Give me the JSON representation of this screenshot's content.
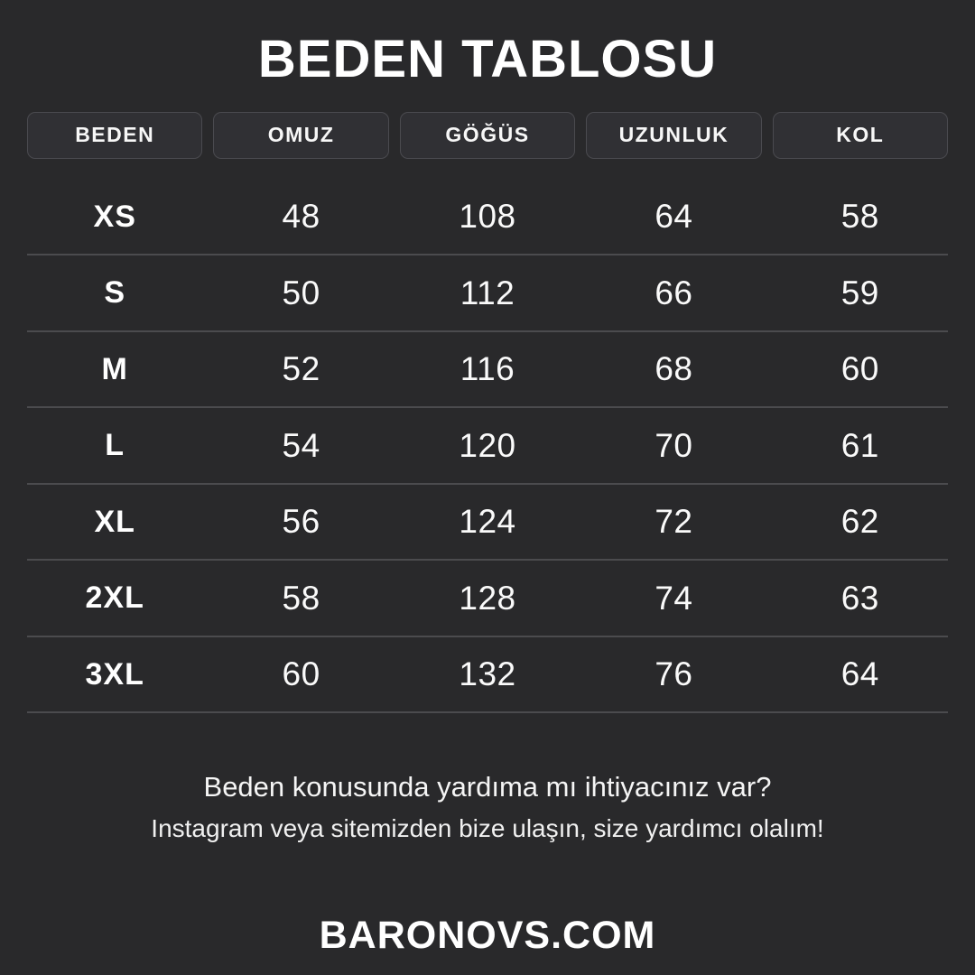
{
  "title": "BEDEN TABLOSU",
  "chart_data": {
    "type": "table",
    "title": "BEDEN TABLOSU",
    "columns": [
      "BEDEN",
      "OMUZ",
      "GÖĞÜS",
      "UZUNLUK",
      "KOL"
    ],
    "rows": [
      {
        "size": "XS",
        "values": [
          "48",
          "108",
          "64",
          "58"
        ]
      },
      {
        "size": "S",
        "values": [
          "50",
          "112",
          "66",
          "59"
        ]
      },
      {
        "size": "M",
        "values": [
          "52",
          "116",
          "68",
          "60"
        ]
      },
      {
        "size": "L",
        "values": [
          "54",
          "120",
          "70",
          "61"
        ]
      },
      {
        "size": "XL",
        "values": [
          "56",
          "124",
          "72",
          "62"
        ]
      },
      {
        "size": "2XL",
        "values": [
          "58",
          "128",
          "74",
          "63"
        ]
      },
      {
        "size": "3XL",
        "values": [
          "60",
          "132",
          "76",
          "64"
        ]
      }
    ]
  },
  "headers": {
    "col0": "BEDEN",
    "col1": "OMUZ",
    "col2": "GÖĞÜS",
    "col3": "UZUNLUK",
    "col4": "KOL"
  },
  "footer": {
    "help_line1": "Beden konusunda yardıma mı ihtiyacınız var?",
    "help_line2": "Instagram veya sitemizden bize ulaşın, size yardımcı olalım!",
    "brand": "BARONOVS.COM"
  },
  "colors": {
    "background": "#29292b",
    "chip_fill": "#303034",
    "chip_border": "#4a4a4f",
    "separator": "#4b4b4e",
    "text": "#ffffff"
  }
}
